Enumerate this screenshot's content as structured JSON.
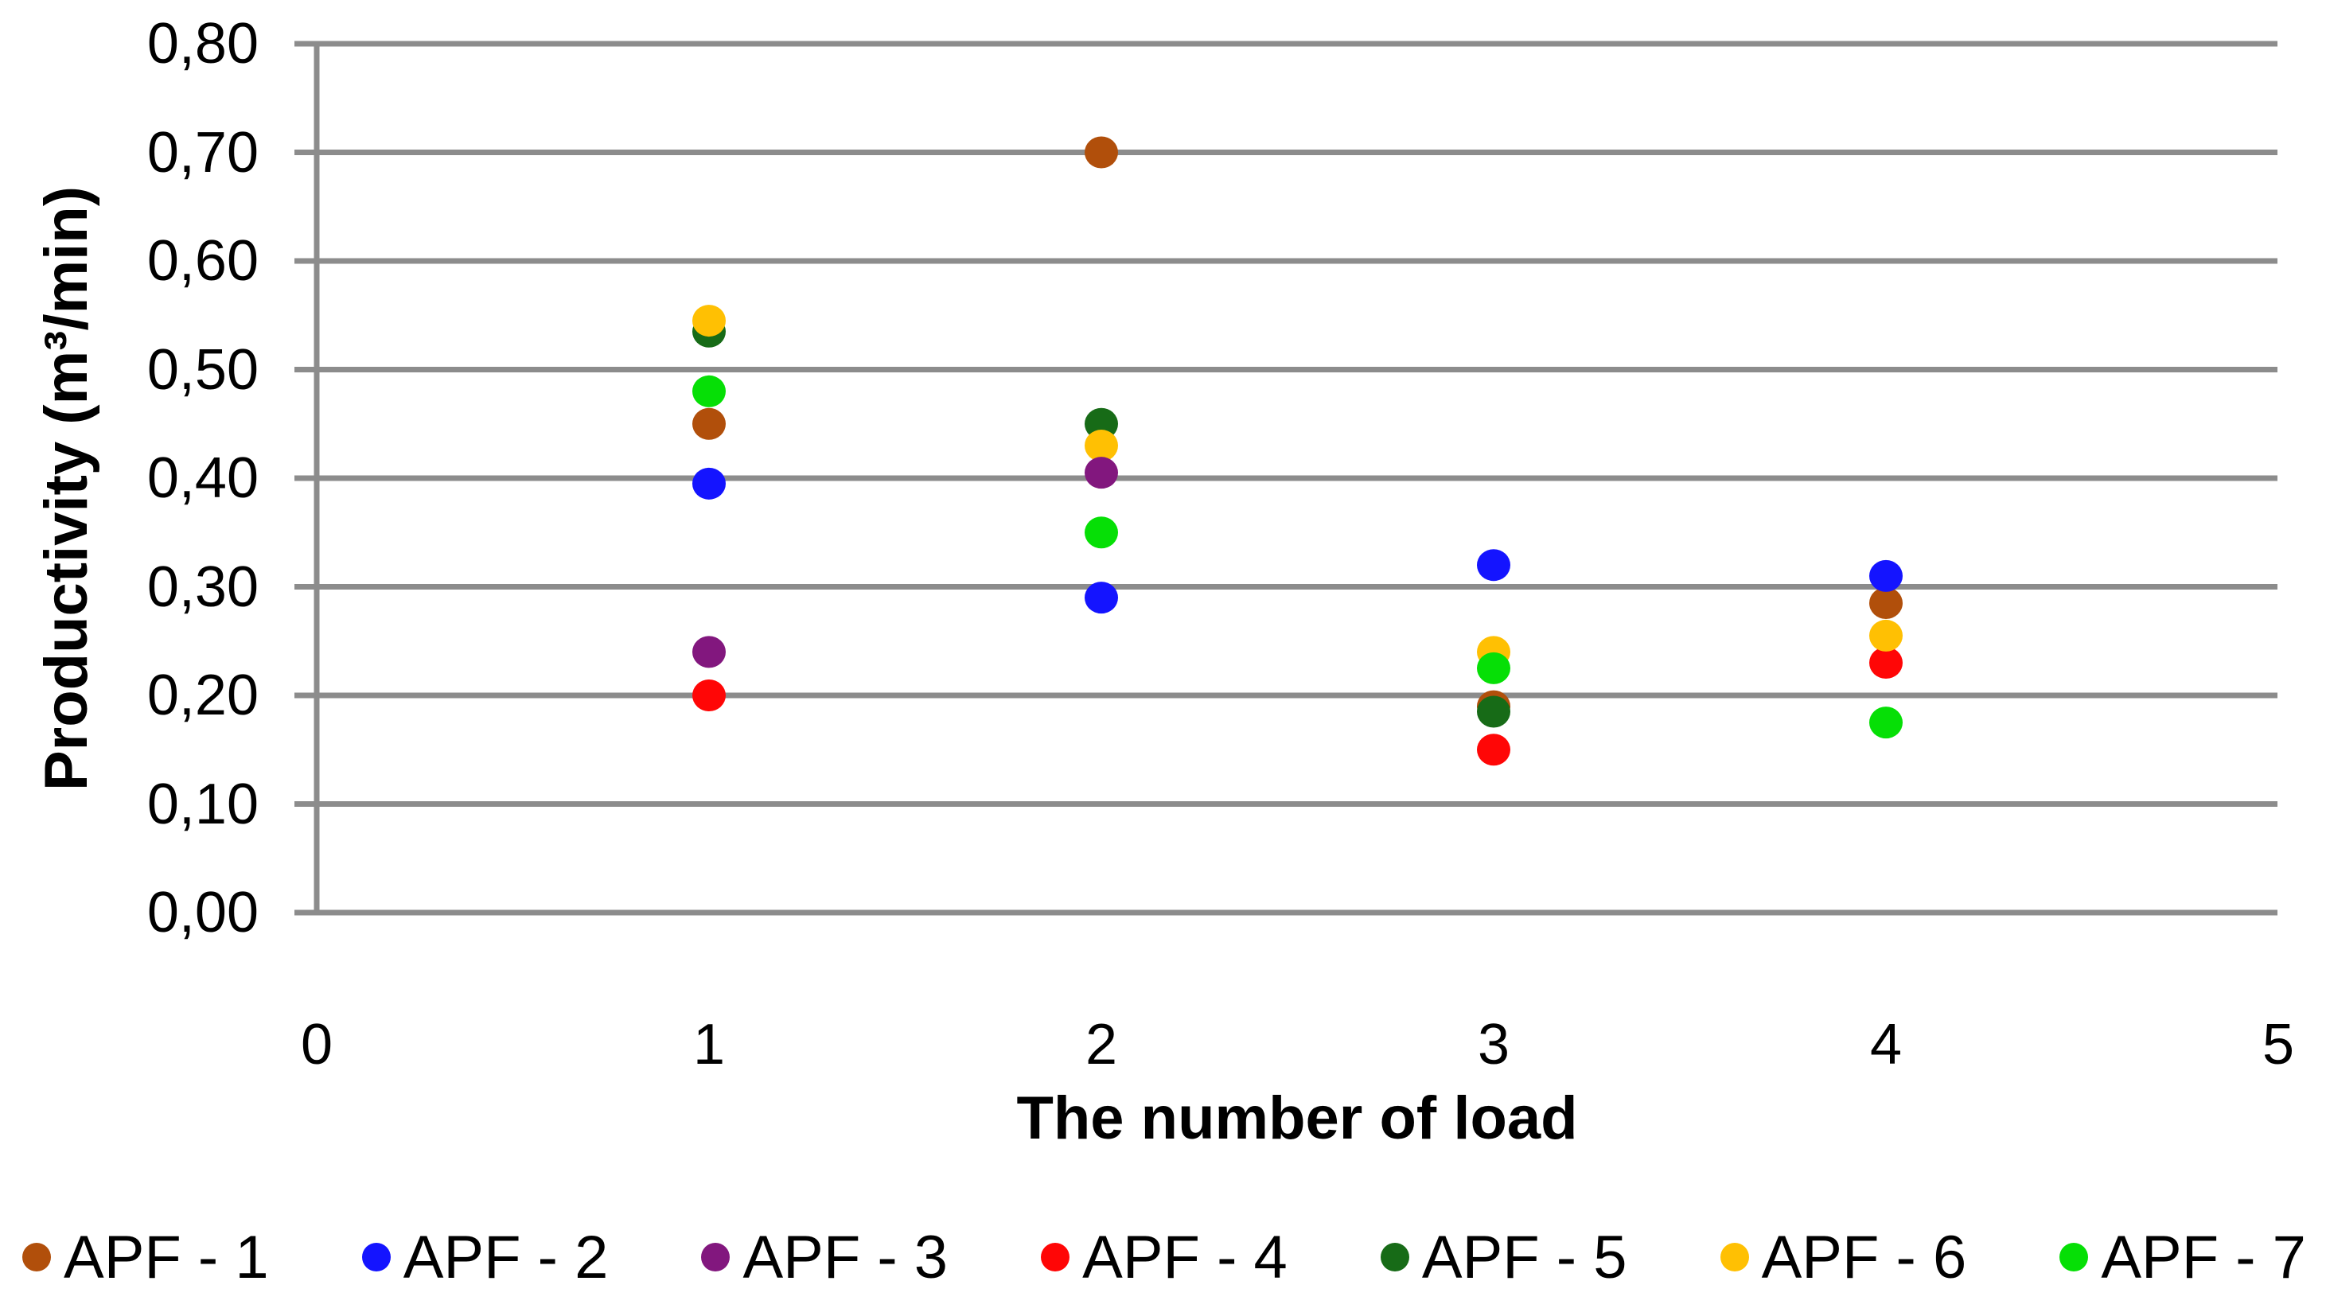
{
  "chart_data": {
    "type": "scatter",
    "title": "",
    "xlabel": "The number of load",
    "ylabel": "Productivity (m³/min)",
    "xlim": [
      0,
      5
    ],
    "ylim": [
      0.0,
      0.8
    ],
    "x_tick_labels": [
      "0",
      "1",
      "2",
      "3",
      "4",
      "5"
    ],
    "y_tick_labels": [
      "0,00",
      "0,10",
      "0,20",
      "0,30",
      "0,40",
      "0,50",
      "0,60",
      "0,70",
      "0,80"
    ],
    "grid": "horizontal-only",
    "gridline_color": "#8C8C8C",
    "axis_color": "#8C8C8C",
    "legend_position": "bottom",
    "marker": "circle",
    "series": [
      {
        "name": "APF - 1",
        "color": "#B14F0B",
        "points": [
          {
            "x": 1,
            "y": 0.45
          },
          {
            "x": 2,
            "y": 0.7
          },
          {
            "x": 3,
            "y": 0.19
          },
          {
            "x": 4,
            "y": 0.285
          }
        ]
      },
      {
        "name": "APF - 2",
        "color": "#1414FF",
        "points": [
          {
            "x": 1,
            "y": 0.395
          },
          {
            "x": 2,
            "y": 0.29
          },
          {
            "x": 3,
            "y": 0.32
          },
          {
            "x": 4,
            "y": 0.31
          }
        ]
      },
      {
        "name": "APF - 3",
        "color": "#82177E",
        "points": [
          {
            "x": 1,
            "y": 0.24
          },
          {
            "x": 2,
            "y": 0.405
          }
        ]
      },
      {
        "name": "APF - 4",
        "color": "#FF0606",
        "points": [
          {
            "x": 1,
            "y": 0.2
          },
          {
            "x": 3,
            "y": 0.15
          },
          {
            "x": 4,
            "y": 0.23
          }
        ]
      },
      {
        "name": "APF - 5",
        "color": "#176B17",
        "points": [
          {
            "x": 1,
            "y": 0.535
          },
          {
            "x": 2,
            "y": 0.45
          },
          {
            "x": 3,
            "y": 0.185
          }
        ]
      },
      {
        "name": "APF - 6",
        "color": "#FFC003",
        "points": [
          {
            "x": 1,
            "y": 0.545
          },
          {
            "x": 2,
            "y": 0.43
          },
          {
            "x": 3,
            "y": 0.24
          },
          {
            "x": 4,
            "y": 0.255
          }
        ]
      },
      {
        "name": "APF - 7",
        "color": "#06DF06",
        "points": [
          {
            "x": 1,
            "y": 0.48
          },
          {
            "x": 2,
            "y": 0.35
          },
          {
            "x": 3,
            "y": 0.225
          },
          {
            "x": 4,
            "y": 0.175
          }
        ]
      }
    ],
    "render_order": [
      "APF - 1",
      "APF - 2",
      "APF - 4",
      "APF - 5",
      "APF - 6",
      "APF - 3",
      "APF - 7"
    ]
  }
}
